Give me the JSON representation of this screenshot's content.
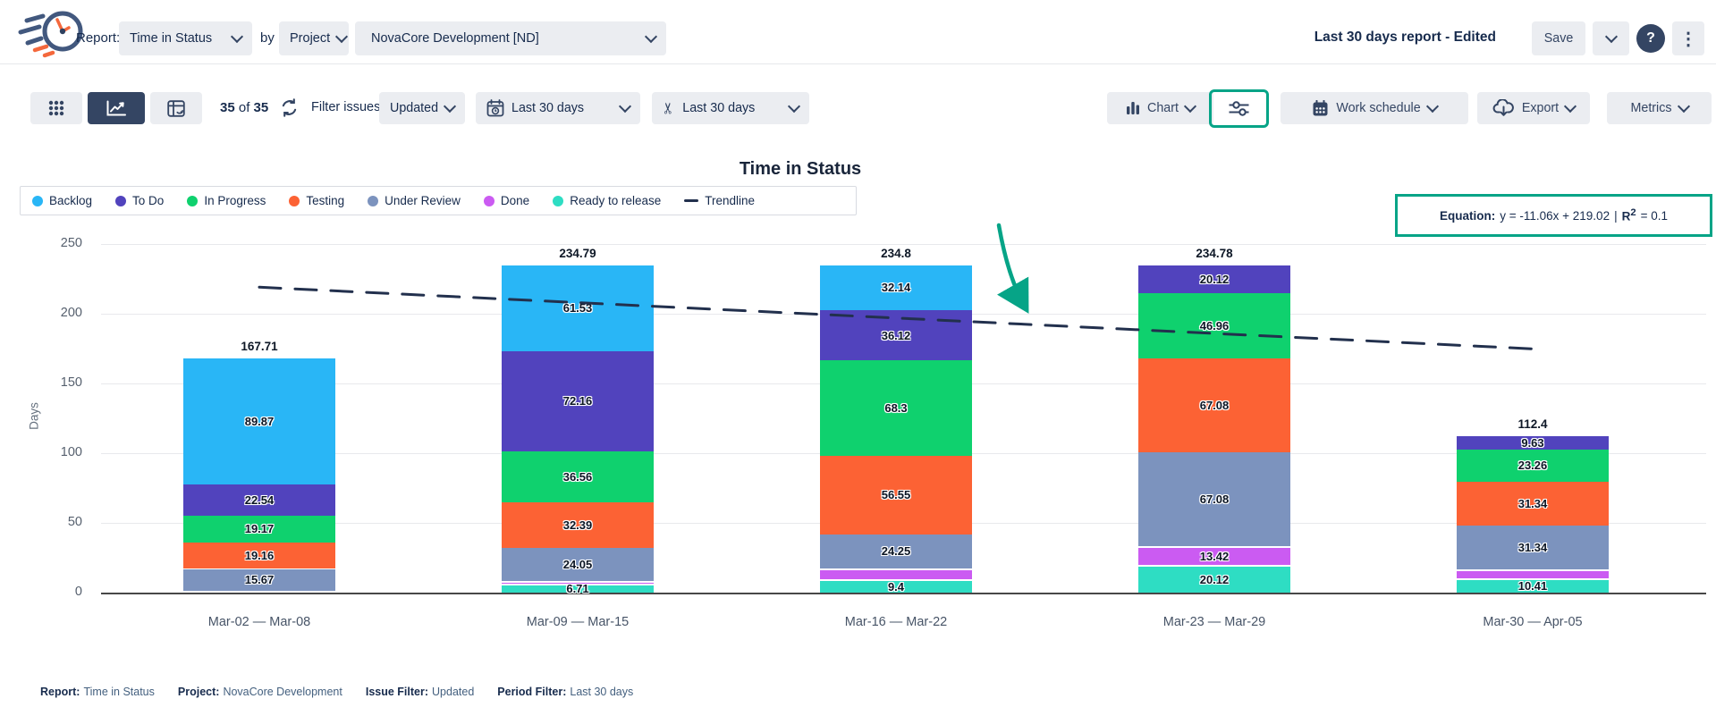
{
  "header": {
    "report_label": "Report:",
    "report_type": "Time in Status",
    "by_label": "by",
    "group_by": "Project",
    "project": "NovaCore Development [ND]",
    "saved_report": "Last 30 days report",
    "saved_state": "- Edited",
    "save_label": "Save",
    "help_glyph": "?",
    "kebab_glyph": "⋮"
  },
  "toolbar": {
    "count_a": "35",
    "count_of": "of",
    "count_b": "35",
    "filter_label": "Filter issues:",
    "issue_filter": "Updated",
    "date_filter": "Last 30 days",
    "trim_filter": "Last 30 days",
    "chart_label": "Chart",
    "work_schedule_label": "Work schedule",
    "export_label": "Export",
    "metrics_label": "Metrics",
    "scissors_glyph": "✂"
  },
  "chart_data": {
    "type": "stacked-bar",
    "title": "Time in Status",
    "ylabel": "Days",
    "ylim": [
      0,
      250
    ],
    "yticks": [
      0,
      50,
      100,
      150,
      200,
      250
    ],
    "grid": true,
    "legend_position": "top-left",
    "categories": [
      "Mar-02 — Mar-08",
      "Mar-09 — Mar-15",
      "Mar-16 — Mar-22",
      "Mar-23 — Mar-29",
      "Mar-30 — Apr-05"
    ],
    "totals": [
      "167.71",
      "234.79",
      "234.8",
      "234.78",
      "112.4"
    ],
    "series": [
      {
        "name": "Backlog",
        "color": "#29b6f6",
        "values": [
          89.87,
          61.53,
          32.14,
          0,
          0
        ],
        "labels": [
          "89.87",
          "61.53",
          "32.14",
          null,
          null
        ]
      },
      {
        "name": "To Do",
        "color": "#5143bd",
        "values": [
          22.54,
          72.16,
          36.12,
          20.12,
          9.63
        ],
        "labels": [
          "22.54",
          "72.16",
          "36.12",
          "20.12",
          "9.63"
        ]
      },
      {
        "name": "In Progress",
        "color": "#0fd16e",
        "values": [
          19.17,
          36.56,
          68.3,
          46.96,
          23.26
        ],
        "labels": [
          "19.17",
          "36.56",
          "68.3",
          "46.96",
          "23.26"
        ]
      },
      {
        "name": "Testing",
        "color": "#fc6234",
        "values": [
          19.16,
          32.39,
          56.55,
          67.08,
          31.34
        ],
        "labels": [
          "19.16",
          "32.39",
          "56.55",
          "67.08",
          "31.34"
        ]
      },
      {
        "name": "Under Review",
        "color": "#7c93be",
        "values": [
          15.67,
          24.05,
          24.25,
          67.08,
          31.34
        ],
        "labels": [
          "15.67",
          "24.05",
          "24.25",
          "67.08",
          "31.34"
        ]
      },
      {
        "name": "Done",
        "color": "#cb5bf2",
        "values": [
          0,
          1.39,
          8.04,
          13.42,
          6.42
        ],
        "labels": [
          null,
          null,
          null,
          "13.42",
          null
        ]
      },
      {
        "name": "Ready to release",
        "color": "#2eddc3",
        "values": [
          1.3,
          6.71,
          9.4,
          20.12,
          10.41
        ],
        "labels": [
          null,
          "6.71",
          "9.4",
          "20.12",
          "10.41"
        ]
      }
    ],
    "trendline": {
      "label": "Trendline",
      "color": "#22304d",
      "start_value": 219.02,
      "end_value": 174.78
    },
    "equation": {
      "label": "Equation:",
      "formula": "y = -11.06x + 219.02",
      "pipe": "|",
      "r2_base": "R",
      "r2_exp": "2",
      "r2_eq": "= 0.1"
    }
  },
  "footer": {
    "items": [
      {
        "label": "Report:",
        "value": "Time in Status"
      },
      {
        "label": "Project:",
        "value": "NovaCore Development"
      },
      {
        "label": "Issue Filter:",
        "value": "Updated"
      },
      {
        "label": "Period Filter:",
        "value": "Last 30 days"
      }
    ]
  },
  "colors": {
    "highlight_teal": "#06a487",
    "navy_icon": "#344563",
    "dark_text": "#172b4d",
    "button_bg": "#ebedf1",
    "trendline": "#22304d"
  }
}
